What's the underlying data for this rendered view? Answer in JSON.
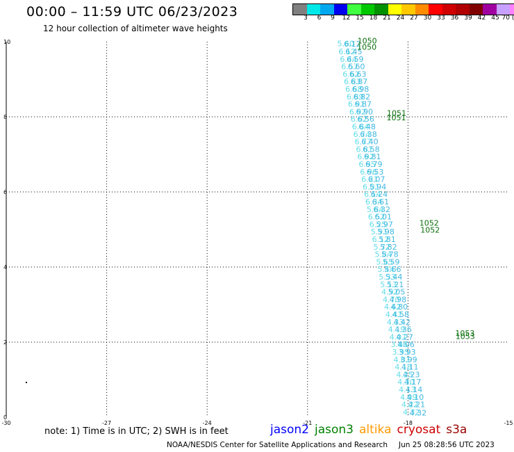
{
  "title": "00:00 – 11:59 UTC 06/23/2023",
  "subtitle": "12 hour collection of altimeter wave heights",
  "color_scale": {
    "colors": [
      "#808080",
      "#00e8e8",
      "#00a8f0",
      "#0000f0",
      "#40ff40",
      "#00c800",
      "#009000",
      "#ffff00",
      "#ffc800",
      "#ff8c00",
      "#ff0000",
      "#d00000",
      "#b00000",
      "#800000",
      "#a000a0",
      "#c8a0ff",
      "#ff80ff",
      "#000000"
    ],
    "labels": [
      "3",
      "6",
      "9",
      "12",
      "15",
      "18",
      "21",
      "24",
      "27",
      "30",
      "33",
      "36",
      "39",
      "42",
      "45",
      "70 (ft)"
    ]
  },
  "note": "note: 1) Time is in UTC; 2) SWH is in feet",
  "satellites": [
    {
      "name": "jason2",
      "color": "#0000ff"
    },
    {
      "name": "jason3",
      "color": "#008000"
    },
    {
      "name": "altika",
      "color": "#ff9900"
    },
    {
      "name": "cryosat",
      "color": "#cc0000"
    },
    {
      "name": "s3a",
      "color": "#990000"
    }
  ],
  "footer": {
    "org": "NOAA/NESDIS Center for Satellite Applications and Research",
    "timestamp": "Jun 25 08:28:56 UTC 2023"
  },
  "chart_data": {
    "type": "scatter",
    "xlim": [
      -30,
      -15
    ],
    "ylim": [
      0,
      10
    ],
    "x_ticks": [
      "-30",
      "-27",
      "-24",
      "-21",
      "-18",
      "-15"
    ],
    "y_ticks": [
      "0",
      "2",
      "4",
      "6",
      "8",
      "10"
    ],
    "grid": true,
    "series": [
      {
        "color": "#60dce8",
        "points": [
          {
            "x": -19.86,
            "y": 9.95,
            "label": "5.60"
          },
          {
            "x": -19.82,
            "y": 9.74,
            "label": "6.12"
          },
          {
            "x": -19.78,
            "y": 9.54,
            "label": "6.44"
          },
          {
            "x": -19.74,
            "y": 9.34,
            "label": "6.57"
          },
          {
            "x": -19.7,
            "y": 9.14,
            "label": "6.62"
          },
          {
            "x": -19.66,
            "y": 8.94,
            "label": "6.83"
          },
          {
            "x": -19.62,
            "y": 8.74,
            "label": "6.68"
          },
          {
            "x": -19.58,
            "y": 8.54,
            "label": "6.89"
          },
          {
            "x": -19.54,
            "y": 8.34,
            "label": "6.91"
          },
          {
            "x": -19.5,
            "y": 8.14,
            "label": "6.92"
          },
          {
            "x": -19.46,
            "y": 7.94,
            "label": "6.62"
          },
          {
            "x": -19.42,
            "y": 7.74,
            "label": "6.84"
          },
          {
            "x": -19.38,
            "y": 7.54,
            "label": "6.74"
          },
          {
            "x": -19.34,
            "y": 7.34,
            "label": "6.77"
          },
          {
            "x": -19.3,
            "y": 7.14,
            "label": "6.81"
          },
          {
            "x": -19.26,
            "y": 6.94,
            "label": "6.92"
          },
          {
            "x": -19.22,
            "y": 6.74,
            "label": "6.95"
          },
          {
            "x": -19.18,
            "y": 6.54,
            "label": "6.96"
          },
          {
            "x": -19.14,
            "y": 6.34,
            "label": "6.21"
          },
          {
            "x": -19.1,
            "y": 6.14,
            "label": "6.01"
          },
          {
            "x": -19.06,
            "y": 5.94,
            "label": "6.14"
          },
          {
            "x": -19.02,
            "y": 5.74,
            "label": "6.34"
          },
          {
            "x": -18.98,
            "y": 5.54,
            "label": "5.84"
          },
          {
            "x": -18.94,
            "y": 5.34,
            "label": "6.52"
          },
          {
            "x": -18.9,
            "y": 5.14,
            "label": "6.25"
          },
          {
            "x": -18.86,
            "y": 4.94,
            "label": "5.91"
          },
          {
            "x": -18.82,
            "y": 4.74,
            "label": "6.12"
          },
          {
            "x": -18.78,
            "y": 4.54,
            "label": "5.72"
          },
          {
            "x": -18.74,
            "y": 4.34,
            "label": "5.84"
          },
          {
            "x": -18.7,
            "y": 4.14,
            "label": "5.65"
          },
          {
            "x": -18.66,
            "y": 3.94,
            "label": "5.44"
          },
          {
            "x": -18.62,
            "y": 3.74,
            "label": "5.33"
          },
          {
            "x": -18.58,
            "y": 3.54,
            "label": "5.13"
          },
          {
            "x": -18.54,
            "y": 3.34,
            "label": "4.92"
          },
          {
            "x": -18.5,
            "y": 3.14,
            "label": "4.70"
          },
          {
            "x": -18.46,
            "y": 2.94,
            "label": "4.62"
          },
          {
            "x": -18.42,
            "y": 2.74,
            "label": "4.41"
          },
          {
            "x": -18.38,
            "y": 2.54,
            "label": "4.33"
          },
          {
            "x": -18.34,
            "y": 2.34,
            "label": "4.19"
          },
          {
            "x": -18.3,
            "y": 2.14,
            "label": "4.07"
          },
          {
            "x": -18.26,
            "y": 1.94,
            "label": "3.86"
          },
          {
            "x": -18.22,
            "y": 1.74,
            "label": "3.95"
          },
          {
            "x": -18.18,
            "y": 1.54,
            "label": "4.01"
          },
          {
            "x": -18.14,
            "y": 1.34,
            "label": "4.18"
          },
          {
            "x": -18.1,
            "y": 1.14,
            "label": "4.25"
          },
          {
            "x": -18.06,
            "y": 0.94,
            "label": "4.30"
          },
          {
            "x": -18.02,
            "y": 0.74,
            "label": "4.13"
          },
          {
            "x": -17.98,
            "y": 0.54,
            "label": "4.09"
          },
          {
            "x": -17.94,
            "y": 0.34,
            "label": "4.22"
          },
          {
            "x": -17.9,
            "y": 0.14,
            "label": "4.32"
          }
        ]
      },
      {
        "color": "#40b8e0",
        "points": [
          {
            "x": -19.66,
            "y": 9.94,
            "label": "6.12"
          },
          {
            "x": -19.62,
            "y": 9.74,
            "label": "6.45"
          },
          {
            "x": -19.58,
            "y": 9.54,
            "label": "6.59"
          },
          {
            "x": -19.54,
            "y": 9.34,
            "label": "6.60"
          },
          {
            "x": -19.5,
            "y": 9.14,
            "label": "6.63"
          },
          {
            "x": -19.46,
            "y": 8.94,
            "label": "6.87"
          },
          {
            "x": -19.42,
            "y": 8.74,
            "label": "6.98"
          },
          {
            "x": -19.38,
            "y": 8.54,
            "label": "6.82"
          },
          {
            "x": -19.34,
            "y": 8.34,
            "label": "6.87"
          },
          {
            "x": -19.3,
            "y": 8.14,
            "label": "6.90"
          },
          {
            "x": -19.26,
            "y": 7.94,
            "label": "6.56"
          },
          {
            "x": -19.22,
            "y": 7.74,
            "label": "6.48"
          },
          {
            "x": -19.18,
            "y": 7.54,
            "label": "6.38"
          },
          {
            "x": -19.14,
            "y": 7.34,
            "label": "6.40"
          },
          {
            "x": -19.1,
            "y": 7.14,
            "label": "6.58"
          },
          {
            "x": -19.06,
            "y": 6.94,
            "label": "6.81"
          },
          {
            "x": -19.02,
            "y": 6.74,
            "label": "6.79"
          },
          {
            "x": -18.98,
            "y": 6.54,
            "label": "6.53"
          },
          {
            "x": -18.94,
            "y": 6.34,
            "label": "6.07"
          },
          {
            "x": -18.9,
            "y": 6.14,
            "label": "5.94"
          },
          {
            "x": -18.86,
            "y": 5.94,
            "label": "6.24"
          },
          {
            "x": -18.82,
            "y": 5.74,
            "label": "6.61"
          },
          {
            "x": -18.78,
            "y": 5.54,
            "label": "6.32"
          },
          {
            "x": -18.74,
            "y": 5.34,
            "label": "6.01"
          },
          {
            "x": -18.7,
            "y": 5.14,
            "label": "5.97"
          },
          {
            "x": -18.66,
            "y": 4.94,
            "label": "5.98"
          },
          {
            "x": -18.62,
            "y": 4.74,
            "label": "5.81"
          },
          {
            "x": -18.58,
            "y": 4.54,
            "label": "5.82"
          },
          {
            "x": -18.54,
            "y": 4.34,
            "label": "5.78"
          },
          {
            "x": -18.5,
            "y": 4.14,
            "label": "5.59"
          },
          {
            "x": -18.46,
            "y": 3.94,
            "label": "5.66"
          },
          {
            "x": -18.42,
            "y": 3.74,
            "label": "5.44"
          },
          {
            "x": -18.38,
            "y": 3.54,
            "label": "5.21"
          },
          {
            "x": -18.34,
            "y": 3.34,
            "label": "5.05"
          },
          {
            "x": -18.3,
            "y": 3.14,
            "label": "4.98"
          },
          {
            "x": -18.26,
            "y": 2.94,
            "label": "4.80"
          },
          {
            "x": -18.22,
            "y": 2.74,
            "label": "4.58"
          },
          {
            "x": -18.18,
            "y": 2.54,
            "label": "4.42"
          },
          {
            "x": -18.14,
            "y": 2.34,
            "label": "4.36"
          },
          {
            "x": -18.1,
            "y": 2.14,
            "label": "4.27"
          },
          {
            "x": -18.06,
            "y": 1.94,
            "label": "4.06"
          },
          {
            "x": -18.02,
            "y": 1.74,
            "label": "3.93"
          },
          {
            "x": -17.98,
            "y": 1.54,
            "label": "3.99"
          },
          {
            "x": -17.94,
            "y": 1.34,
            "label": "4.11"
          },
          {
            "x": -17.9,
            "y": 1.14,
            "label": "4.23"
          },
          {
            "x": -17.86,
            "y": 0.94,
            "label": "4.17"
          },
          {
            "x": -17.82,
            "y": 0.74,
            "label": "4.14"
          },
          {
            "x": -17.78,
            "y": 0.54,
            "label": "4.10"
          },
          {
            "x": -17.74,
            "y": 0.34,
            "label": "4.21"
          },
          {
            "x": -17.7,
            "y": 0.12,
            "label": "4.32"
          }
        ]
      },
      {
        "color": "#0a6e0a",
        "points": [
          {
            "x": -19.22,
            "y": 10.03,
            "label": "1050"
          },
          {
            "x": -19.23,
            "y": 9.86,
            "label": "1050"
          },
          {
            "x": -18.34,
            "y": 8.1,
            "label": "1051"
          },
          {
            "x": -18.35,
            "y": 7.98,
            "label": "1051"
          },
          {
            "x": -17.37,
            "y": 5.18,
            "label": "1052"
          },
          {
            "x": -17.34,
            "y": 4.99,
            "label": "1052"
          },
          {
            "x": -16.3,
            "y": 2.24,
            "label": "1053"
          },
          {
            "x": -16.29,
            "y": 2.16,
            "label": "1053"
          }
        ]
      }
    ]
  }
}
